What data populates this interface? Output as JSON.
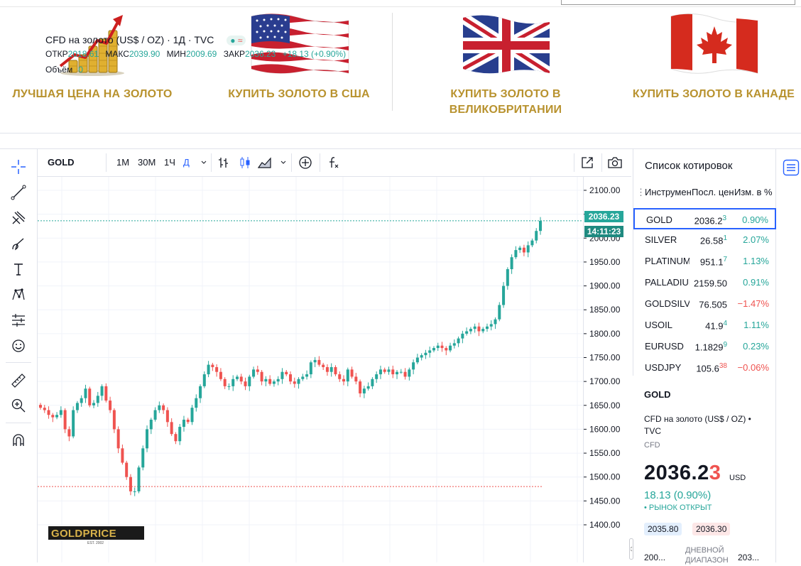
{
  "promos": [
    {
      "label": "ЛУЧШАЯ ЦЕНА НА ЗОЛОТО",
      "icon": "gold-coins-chart-icon"
    },
    {
      "label": "КУПИТЬ ЗОЛОТО В США",
      "icon": "usa-flag-icon"
    },
    {
      "label": "КУПИТЬ ЗОЛОТО В ВЕЛИКОБРИТАНИИ",
      "icon": "uk-flag-icon"
    },
    {
      "label": "КУПИТЬ ЗОЛОТО В КАНАДЕ",
      "icon": "canada-flag-icon"
    }
  ],
  "toolbar": {
    "symbol": "GOLD",
    "timeframes": [
      "1М",
      "30М",
      "1Ч",
      "Д"
    ],
    "active_timeframe": "Д",
    "chart_style": "candles"
  },
  "legend": {
    "title": "CFD на золото (US$ / OZ) · 1Д · TVC",
    "open_label": "ОТКР",
    "open": "2018.61",
    "high_label": "МАКС",
    "high": "2039.90",
    "low_label": "МИН",
    "low": "2009.69",
    "close_label": "ЗАКР",
    "close": "2036.23",
    "change": "+18.13 (+0.90%)",
    "volume_label": "Объём",
    "volume": "0"
  },
  "price_axis": {
    "ticks": [
      "2100.00",
      "2050.00",
      "2000.00",
      "1950.00",
      "1900.00",
      "1850.00",
      "1800.00",
      "1750.00",
      "1700.00",
      "1650.00",
      "1600.00",
      "1550.00",
      "1500.00",
      "1450.00",
      "1400.00"
    ],
    "last_price": "2036.23",
    "countdown": "14:11:23"
  },
  "chart_data": {
    "type": "candlestick",
    "symbol": "GOLD",
    "ylim": [
      1400,
      2100
    ],
    "up_color": "#26a69a",
    "down_color": "#ef5350",
    "support_line": 1480,
    "last": 2036.23,
    "closes": [
      1645,
      1640,
      1630,
      1625,
      1630,
      1640,
      1600,
      1585,
      1640,
      1655,
      1665,
      1685,
      1650,
      1655,
      1670,
      1690,
      1660,
      1640,
      1600,
      1560,
      1530,
      1500,
      1470,
      1470,
      1520,
      1560,
      1600,
      1620,
      1640,
      1650,
      1640,
      1615,
      1590,
      1575,
      1605,
      1620,
      1615,
      1645,
      1665,
      1690,
      1715,
      1735,
      1730,
      1720,
      1705,
      1690,
      1690,
      1705,
      1710,
      1700,
      1690,
      1710,
      1725,
      1720,
      1700,
      1705,
      1695,
      1700,
      1705,
      1720,
      1715,
      1700,
      1695,
      1705,
      1710,
      1715,
      1740,
      1745,
      1735,
      1730,
      1720,
      1730,
      1715,
      1705,
      1700,
      1725,
      1710,
      1700,
      1675,
      1685,
      1690,
      1705,
      1715,
      1725,
      1720,
      1725,
      1715,
      1720,
      1720,
      1710,
      1725,
      1740,
      1750,
      1755,
      1760,
      1765,
      1770,
      1775,
      1770,
      1765,
      1775,
      1780,
      1790,
      1800,
      1805,
      1810,
      1815,
      1805,
      1810,
      1815,
      1820,
      1830,
      1860,
      1900,
      1935,
      1960,
      1975,
      1980,
      1970,
      1985,
      1995,
      2015,
      2036
    ]
  },
  "watchlist": {
    "title": "Список котировок",
    "columns": [
      "Инструмент",
      "Посл. цена",
      "Изм. в %"
    ],
    "rows": [
      {
        "symbol": "GOLD",
        "price": "2036.2",
        "price_sup": "3",
        "change": "0.90%",
        "dir": "up",
        "selected": true
      },
      {
        "symbol": "SILVER",
        "price": "26.58",
        "price_sup": "1",
        "change": "2.07%",
        "dir": "up"
      },
      {
        "symbol": "PLATINUM",
        "price": "951.1",
        "price_sup": "7",
        "change": "1.13%",
        "dir": "up"
      },
      {
        "symbol": "PALLADIUM",
        "price": "2159.50",
        "price_sup": "",
        "change": "0.91%",
        "dir": "up"
      },
      {
        "symbol": "GOLDSILVER",
        "price": "76.505",
        "price_sup": "",
        "change": "−1.47%",
        "dir": "down"
      },
      {
        "symbol": "USOIL",
        "price": "41.9",
        "price_sup": "4",
        "change": "1.11%",
        "dir": "up"
      },
      {
        "symbol": "EURUSD",
        "price": "1.1829",
        "price_sup": "9",
        "change": "0.23%",
        "dir": "up"
      },
      {
        "symbol": "USDJPY",
        "price": "105.6",
        "price_sup": "38",
        "change": "−0.06%",
        "dir": "down"
      }
    ]
  },
  "details": {
    "symbol": "GOLD",
    "description": "CFD на золото (US$ / OZ) • TVC",
    "exchange": "CFD",
    "price_main": "2036.2",
    "price_last": "3",
    "currency": "USD",
    "change": "18.13 (0.90%)",
    "market_status": "• РЫНОК ОТКРЫТ",
    "bid": "2035.80",
    "ask": "2036.30",
    "day_low": "200...",
    "range_label": "ДНЕВНОЙ ДИАПАЗОН",
    "day_high": "203..."
  },
  "watermark": {
    "brand": "GOLDPRICE",
    "est": "EST. 2002"
  },
  "colors": {
    "gold_text": "#b8922e",
    "up": "#26a69a",
    "down": "#ef5350",
    "accent": "#2962ff"
  }
}
